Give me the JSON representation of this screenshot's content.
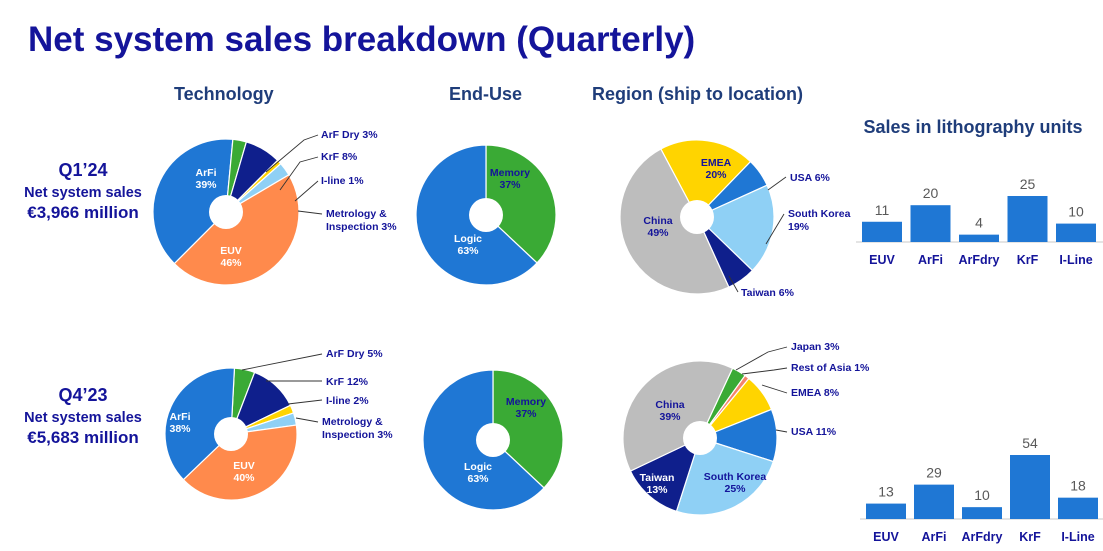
{
  "title": "Net system sales breakdown (Quarterly)",
  "headers": {
    "technology": "Technology",
    "end_use": "End-Use",
    "region": "Region (ship to location)",
    "litho": "Sales in lithography units"
  },
  "periods": [
    {
      "quarter": "Q1’24",
      "label": "Net system sales",
      "amount": "€3,966 million"
    },
    {
      "quarter": "Q4’23",
      "label": "Net system sales",
      "amount": "€5,683 million"
    }
  ],
  "colors": {
    "blue": "#1f77d4",
    "orange": "#ff8a4c",
    "green": "#3aaa35",
    "navy": "#0f1f8c",
    "yellow": "#ffd400",
    "lightblue": "#8fd0f5",
    "grey": "#bdbdbd",
    "salmon": "#f4846c",
    "label_dark": "#14149a"
  },
  "chart_data": [
    {
      "type": "pie",
      "title": "Technology",
      "period": "Q1’24",
      "slices": [
        {
          "name": "ArFi",
          "value": 39,
          "label": "39%",
          "color": "#1f77d4"
        },
        {
          "name": "ArF Dry",
          "value": 3,
          "label": "3%",
          "color": "#3aaa35"
        },
        {
          "name": "KrF",
          "value": 8,
          "label": "8%",
          "color": "#0f1f8c"
        },
        {
          "name": "I-line",
          "value": 1,
          "label": "1%",
          "color": "#ffd400"
        },
        {
          "name": "Metrology & Inspection",
          "value": 3,
          "label": "3%",
          "color": "#8fd0f5"
        },
        {
          "name": "EUV",
          "value": 46,
          "label": "46%",
          "color": "#ff8a4c"
        }
      ]
    },
    {
      "type": "pie",
      "title": "End-Use",
      "period": "Q1’24",
      "slices": [
        {
          "name": "Memory",
          "value": 37,
          "label": "37%",
          "color": "#3aaa35"
        },
        {
          "name": "Logic",
          "value": 63,
          "label": "63%",
          "color": "#1f77d4"
        }
      ]
    },
    {
      "type": "pie",
      "title": "Region (ship to location)",
      "period": "Q1’24",
      "slices": [
        {
          "name": "EMEA",
          "value": 20,
          "label": "20%",
          "color": "#ffd400"
        },
        {
          "name": "USA",
          "value": 6,
          "label": "6%",
          "color": "#1f77d4"
        },
        {
          "name": "South Korea",
          "value": 19,
          "label": "19%",
          "color": "#8fd0f5"
        },
        {
          "name": "Taiwan",
          "value": 6,
          "label": "6%",
          "color": "#0f1f8c"
        },
        {
          "name": "China",
          "value": 49,
          "label": "49%",
          "color": "#bdbdbd"
        }
      ]
    },
    {
      "type": "bar",
      "title": "Sales in lithography units",
      "period": "Q1’24",
      "categories": [
        "EUV",
        "ArFi",
        "ArFdry",
        "KrF",
        "I-Line"
      ],
      "values": [
        11,
        20,
        4,
        25,
        10
      ]
    },
    {
      "type": "pie",
      "title": "Technology",
      "period": "Q4’23",
      "slices": [
        {
          "name": "ArF Dry",
          "value": 5,
          "label": "5%",
          "color": "#3aaa35"
        },
        {
          "name": "KrF",
          "value": 12,
          "label": "12%",
          "color": "#0f1f8c"
        },
        {
          "name": "I-line",
          "value": 2,
          "label": "2%",
          "color": "#ffd400"
        },
        {
          "name": "Metrology & Inspection",
          "value": 3,
          "label": "3%",
          "color": "#8fd0f5"
        },
        {
          "name": "EUV",
          "value": 40,
          "label": "40%",
          "color": "#ff8a4c"
        },
        {
          "name": "ArFi",
          "value": 38,
          "label": "38%",
          "color": "#1f77d4"
        }
      ]
    },
    {
      "type": "pie",
      "title": "End-Use",
      "period": "Q4’23",
      "slices": [
        {
          "name": "Memory",
          "value": 37,
          "label": "37%",
          "color": "#3aaa35"
        },
        {
          "name": "Logic",
          "value": 63,
          "label": "63%",
          "color": "#1f77d4"
        }
      ]
    },
    {
      "type": "pie",
      "title": "Region (ship to location)",
      "period": "Q4’23",
      "slices": [
        {
          "name": "Japan",
          "value": 3,
          "label": "3%",
          "color": "#3aaa35"
        },
        {
          "name": "Rest of Asia",
          "value": 1,
          "label": "1%",
          "color": "#f4846c"
        },
        {
          "name": "EMEA",
          "value": 8,
          "label": "8%",
          "color": "#ffd400"
        },
        {
          "name": "USA",
          "value": 11,
          "label": "11%",
          "color": "#1f77d4"
        },
        {
          "name": "South Korea",
          "value": 25,
          "label": "25%",
          "color": "#8fd0f5"
        },
        {
          "name": "Taiwan",
          "value": 13,
          "label": "13%",
          "color": "#0f1f8c"
        },
        {
          "name": "China",
          "value": 39,
          "label": "39%",
          "color": "#bdbdbd"
        }
      ]
    },
    {
      "type": "bar",
      "title": "",
      "period": "Q4’23",
      "categories": [
        "EUV",
        "ArFi",
        "ArFdry",
        "KrF",
        "I-Line"
      ],
      "values": [
        13,
        29,
        10,
        54,
        18
      ]
    }
  ]
}
